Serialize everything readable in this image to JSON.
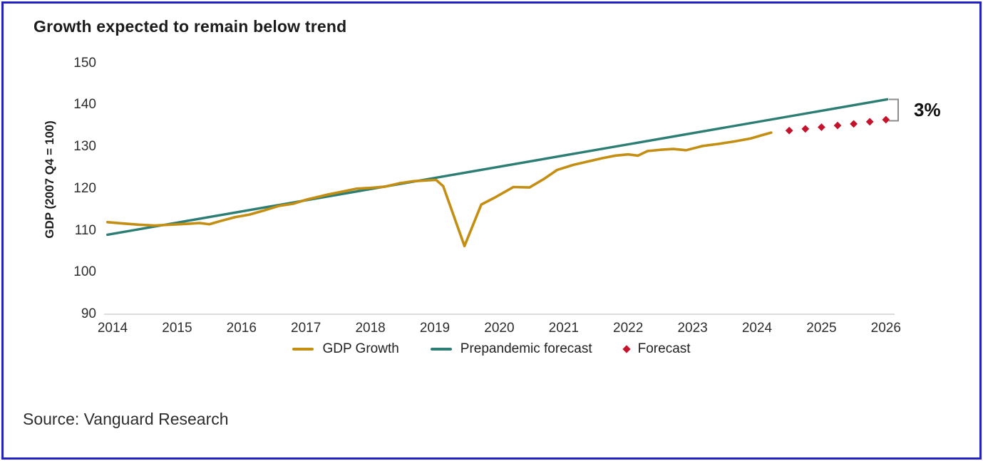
{
  "title": "Growth expected to remain below trend",
  "source": "Source: Vanguard Research",
  "colors": {
    "gdp_growth": "#c38e12",
    "prepandemic_forecast": "#2c7d73",
    "forecast": "#c4132b",
    "frame_border": "#2222c4",
    "baseline_grid": "#dcdcdc",
    "bracket": "#8c8c8c"
  },
  "chart_data": {
    "type": "line",
    "title": "Growth expected to remain below trend",
    "xlabel": "",
    "ylabel": "GDP (2007 Q4 = 100)",
    "ylim": [
      90,
      150
    ],
    "xlim": [
      2013.9,
      2026.6
    ],
    "y_ticks": [
      150,
      140,
      130,
      120,
      110,
      100,
      90
    ],
    "x_ticks": [
      "2014",
      "2015",
      "2016",
      "2017",
      "2018",
      "2019",
      "2020",
      "2021",
      "2022",
      "2023",
      "2024",
      "2025",
      "2026"
    ],
    "grid": "single horizontal baseline at y=90 only",
    "legend_position": "bottom-center",
    "gap_annotation": {
      "label": "3%"
    },
    "series": [
      {
        "name": "GDP Growth",
        "type": "line",
        "color": "#c38e12",
        "points": [
          [
            2013.92,
            112.0
          ],
          [
            2014.15,
            111.7
          ],
          [
            2014.4,
            111.4
          ],
          [
            2014.65,
            111.2
          ],
          [
            2014.9,
            111.4
          ],
          [
            2015.15,
            111.6
          ],
          [
            2015.35,
            111.8
          ],
          [
            2015.5,
            111.5
          ],
          [
            2015.68,
            112.3
          ],
          [
            2015.9,
            113.2
          ],
          [
            2016.12,
            113.8
          ],
          [
            2016.35,
            114.8
          ],
          [
            2016.58,
            115.9
          ],
          [
            2016.8,
            116.4
          ],
          [
            2017.01,
            117.4
          ],
          [
            2017.34,
            118.6
          ],
          [
            2017.56,
            119.3
          ],
          [
            2017.78,
            120.0
          ],
          [
            2018.0,
            120.2
          ],
          [
            2018.23,
            120.5
          ],
          [
            2018.45,
            121.3
          ],
          [
            2018.67,
            121.8
          ],
          [
            2018.89,
            122.0
          ],
          [
            2019.02,
            122.1
          ],
          [
            2019.13,
            120.6
          ],
          [
            2019.46,
            106.3
          ],
          [
            2019.72,
            116.2
          ],
          [
            2019.92,
            117.8
          ],
          [
            2020.22,
            120.4
          ],
          [
            2020.47,
            120.3
          ],
          [
            2020.7,
            122.4
          ],
          [
            2020.9,
            124.5
          ],
          [
            2021.15,
            125.7
          ],
          [
            2021.4,
            126.6
          ],
          [
            2021.6,
            127.3
          ],
          [
            2021.8,
            127.9
          ],
          [
            2022.0,
            128.2
          ],
          [
            2022.15,
            127.9
          ],
          [
            2022.3,
            129.0
          ],
          [
            2022.5,
            129.3
          ],
          [
            2022.7,
            129.5
          ],
          [
            2022.9,
            129.2
          ],
          [
            2023.15,
            130.2
          ],
          [
            2023.4,
            130.7
          ],
          [
            2023.65,
            131.3
          ],
          [
            2023.9,
            132.0
          ],
          [
            2024.1,
            132.9
          ],
          [
            2024.22,
            133.4
          ]
        ]
      },
      {
        "name": "Prepandemic forecast",
        "type": "line",
        "color": "#2c7d73",
        "points": [
          [
            2013.92,
            109.0
          ],
          [
            2026.02,
            141.35
          ]
        ]
      },
      {
        "name": "Forecast",
        "type": "scatter",
        "marker": "diamond",
        "color": "#c4132b",
        "points": [
          [
            2024.5,
            133.9
          ],
          [
            2024.75,
            134.3
          ],
          [
            2025.0,
            134.7
          ],
          [
            2025.25,
            135.1
          ],
          [
            2025.5,
            135.5
          ],
          [
            2025.75,
            136.0
          ],
          [
            2026.0,
            136.5
          ]
        ]
      }
    ]
  }
}
